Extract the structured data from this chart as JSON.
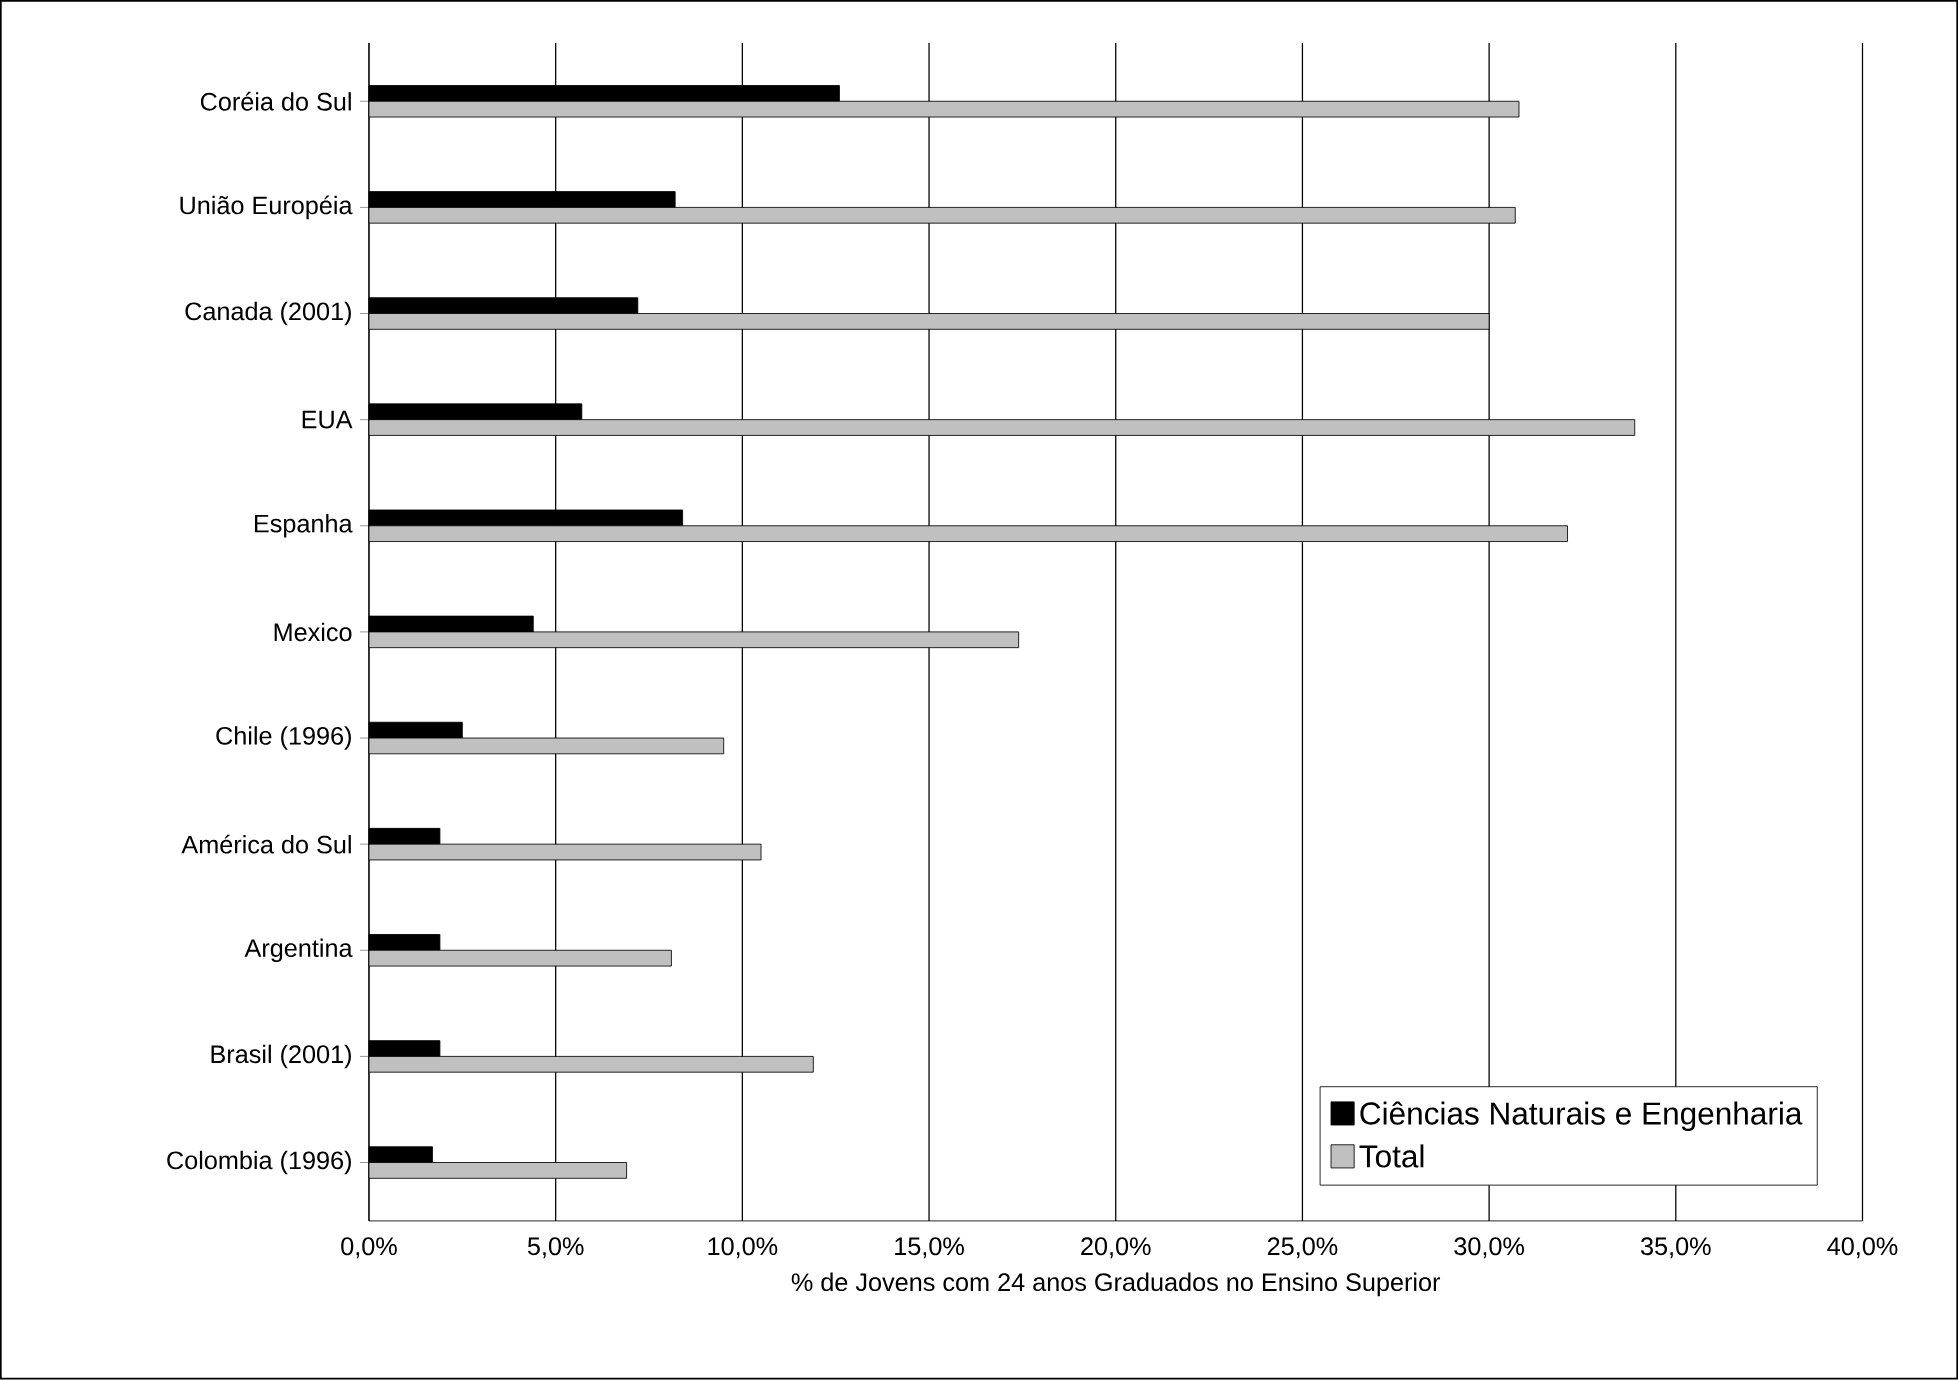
{
  "chart_data": {
    "type": "bar",
    "orientation": "horizontal",
    "xlabel": "% de Jovens com 24 anos Graduados no Ensino Superior",
    "categories": [
      "Coréia do Sul",
      "União Européia",
      "Canada (2001)",
      "EUA",
      "Espanha",
      "Mexico",
      "Chile (1996)",
      "América do Sul",
      "Argentina",
      "Brasil (2001)",
      "Colombia (1996)"
    ],
    "series": [
      {
        "name": "Ciências Naturais e Engenharia",
        "color": "#000000",
        "values": [
          12.6,
          8.2,
          7.2,
          5.7,
          8.4,
          4.4,
          2.5,
          1.9,
          1.9,
          1.9,
          1.7
        ]
      },
      {
        "name": "Total",
        "color": "#c0c0c0",
        "values": [
          30.8,
          30.7,
          30.0,
          33.9,
          32.1,
          17.4,
          9.5,
          10.5,
          8.1,
          11.9,
          6.9
        ]
      }
    ],
    "xlim": [
      0,
      40
    ],
    "xticks": [
      {
        "value": 0,
        "label": "0,0%"
      },
      {
        "value": 5,
        "label": "5,0%"
      },
      {
        "value": 10,
        "label": "10,0%"
      },
      {
        "value": 15,
        "label": "15,0%"
      },
      {
        "value": 20,
        "label": "20,0%"
      },
      {
        "value": 25,
        "label": "25,0%"
      },
      {
        "value": 30,
        "label": "30,0%"
      },
      {
        "value": 35,
        "label": "35,0%"
      },
      {
        "value": 40,
        "label": "40,0%"
      }
    ],
    "grid": "x",
    "legend": "bottom right"
  }
}
